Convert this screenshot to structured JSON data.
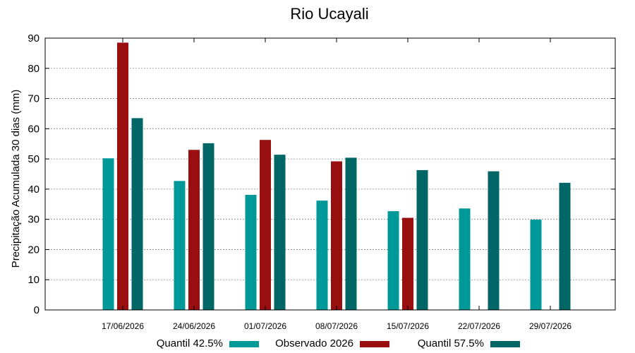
{
  "chart_data": {
    "type": "bar",
    "title": "Rio Ucayali",
    "xlabel": "",
    "ylabel": "Precipitação Acumulada 30 dias (mm)",
    "ylim": [
      0,
      90
    ],
    "yticks": [
      0,
      10,
      20,
      30,
      40,
      50,
      60,
      70,
      80,
      90
    ],
    "grid": true,
    "legend_position": "bottom",
    "categories": [
      "17/06/2026",
      "24/06/2026",
      "01/07/2026",
      "08/07/2026",
      "15/07/2026",
      "22/07/2026",
      "29/07/2026"
    ],
    "series": [
      {
        "name": "Quantil 42.5%",
        "color": "#009999",
        "values": [
          50.2,
          42.7,
          38.1,
          36.2,
          32.7,
          33.6,
          29.9
        ]
      },
      {
        "name": "Observado 2026",
        "color": "#990f0f",
        "values": [
          88.5,
          53.0,
          56.3,
          49.2,
          30.5,
          null,
          null
        ]
      },
      {
        "name": "Quantil 57.5%",
        "color": "#006666",
        "values": [
          63.5,
          55.2,
          51.4,
          50.4,
          46.3,
          45.9,
          42.1
        ]
      }
    ]
  }
}
